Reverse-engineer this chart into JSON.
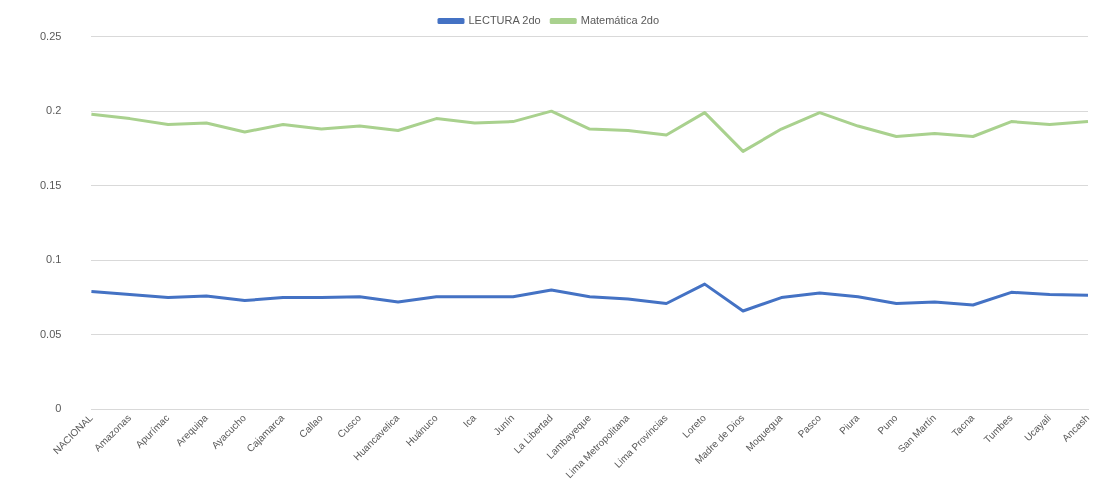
{
  "chart_data": {
    "type": "line",
    "categories": [
      "NACIONAL",
      "Amazonas",
      "Apurímac",
      "Arequipa",
      "Ayacucho",
      "Cajamarca",
      "Callao",
      "Cusco",
      "Huancavelica",
      "Huánuco",
      "Ica",
      "Junín",
      "La Libertad",
      "Lambayeque",
      "Lima Metropolitana",
      "Lima Provincias",
      "Loreto",
      "Madre de Dios",
      "Moquegua",
      "Pasco",
      "Piura",
      "Puno",
      "San Martín",
      "Tacna",
      "Tumbes",
      "Ucayali",
      "Ancash"
    ],
    "series": [
      {
        "name": "LECTURA 2do",
        "color": "#4472c4",
        "values": [
          0.079,
          0.077,
          0.075,
          0.076,
          0.073,
          0.075,
          0.075,
          0.0755,
          0.072,
          0.0755,
          0.0755,
          0.0755,
          0.08,
          0.0755,
          0.074,
          0.071,
          0.084,
          0.066,
          0.075,
          0.078,
          0.0755,
          0.071,
          0.072,
          0.07,
          0.0785,
          0.077,
          0.0765
        ]
      },
      {
        "name": "Matemática 2do",
        "color": "#a9d18e",
        "values": [
          0.198,
          0.195,
          0.191,
          0.192,
          0.186,
          0.191,
          0.188,
          0.19,
          0.187,
          0.195,
          0.192,
          0.193,
          0.2,
          0.188,
          0.187,
          0.184,
          0.199,
          0.173,
          0.188,
          0.199,
          0.19,
          0.183,
          0.185,
          0.183,
          0.193,
          0.191,
          0.193
        ]
      }
    ],
    "ylim": [
      0,
      0.25
    ],
    "yticks": [
      0,
      0.05,
      0.1,
      0.15,
      0.2,
      0.25
    ],
    "grid": "y",
    "legend": "top",
    "marker": "none",
    "line_style": "solid"
  }
}
